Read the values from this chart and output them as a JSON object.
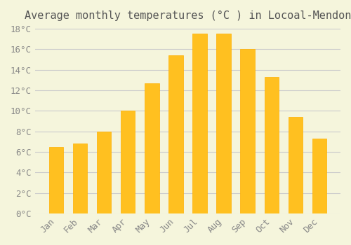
{
  "title": "Average monthly temperatures (°C ) in Locoal-Mendon",
  "months": [
    "Jan",
    "Feb",
    "Mar",
    "Apr",
    "May",
    "Jun",
    "Jul",
    "Aug",
    "Sep",
    "Oct",
    "Nov",
    "Dec"
  ],
  "values": [
    6.5,
    6.8,
    8.0,
    10.0,
    12.7,
    15.4,
    17.5,
    17.5,
    16.0,
    13.3,
    9.4,
    7.3
  ],
  "bar_color": "#FFC020",
  "bar_edge_color": "#FFB000",
  "ylim": [
    0,
    18
  ],
  "yticks": [
    0,
    2,
    4,
    6,
    8,
    10,
    12,
    14,
    16,
    18
  ],
  "ytick_labels": [
    "0°C",
    "2°C",
    "4°C",
    "6°C",
    "8°C",
    "10°C",
    "12°C",
    "14°C",
    "16°C",
    "18°C"
  ],
  "background_color": "#F5F5DC",
  "grid_color": "#CCCCCC",
  "title_fontsize": 11,
  "tick_fontsize": 9,
  "font_family": "monospace"
}
